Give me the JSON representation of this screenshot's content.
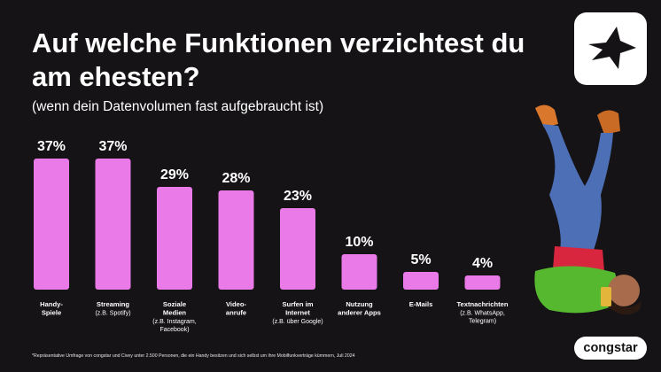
{
  "header": {
    "title": "Auf welche Funktionen verzichtest du am ehesten?",
    "subtitle": "(wenn dein Datenvolumen fast aufgebraucht ist)"
  },
  "brand": {
    "name": "congstar",
    "logo_icon": "star-icon",
    "accent_color": "#e97ae7",
    "background_color": "#151315"
  },
  "footnote": "*Repräsentative Umfrage von congstar und Civey unter 2.500 Personen, die ein Handy besitzen und sich selbst um ihre Mobilfunkverträge kümmern, Juli 2024",
  "chart_data": {
    "type": "bar",
    "title": "Auf welche Funktionen verzichtest du am ehesten?",
    "subtitle": "(wenn dein Datenvolumen fast aufgebraucht ist)",
    "ylim": [
      0,
      37
    ],
    "grid": false,
    "categories": [
      {
        "lines": [
          "Handy-",
          "Spiele"
        ],
        "sub": []
      },
      {
        "lines": [
          "Streaming"
        ],
        "sub": [
          "(z.B. Spotify)"
        ]
      },
      {
        "lines": [
          "Soziale",
          "Medien"
        ],
        "sub": [
          "(z.B. Instagram,",
          "Facebook)"
        ]
      },
      {
        "lines": [
          "Video-",
          "anrufe"
        ],
        "sub": []
      },
      {
        "lines": [
          "Surfen im",
          "Internet"
        ],
        "sub": [
          "(z.B. über Google)"
        ]
      },
      {
        "lines": [
          "Nutzung",
          "anderer Apps"
        ],
        "sub": []
      },
      {
        "lines": [
          "E-Mails"
        ],
        "sub": []
      },
      {
        "lines": [
          "Textnachrichten"
        ],
        "sub": [
          "(z.B. WhatsApp,",
          "Telegram)"
        ]
      }
    ],
    "values": [
      37,
      37,
      29,
      28,
      23,
      10,
      5,
      4
    ],
    "value_labels": [
      "37%",
      "37%",
      "29%",
      "28%",
      "23%",
      "10%",
      "5%",
      "4%"
    ],
    "bar_color": "#e97ae7"
  }
}
